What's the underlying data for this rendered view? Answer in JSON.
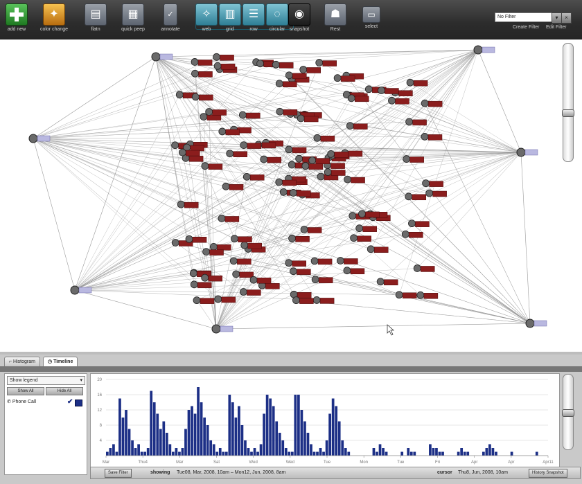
{
  "toolbar": {
    "buttons": [
      {
        "label": "add new",
        "icon": "plus-icon"
      },
      {
        "label": "color change",
        "icon": "color-change-icon"
      },
      {
        "label": "flatn",
        "icon": "flatten-icon"
      },
      {
        "label": "quick peep",
        "icon": "quick-peep-icon"
      },
      {
        "label": "annotate",
        "icon": "annotate-icon"
      },
      {
        "label": "web",
        "icon": "web-layout-icon"
      },
      {
        "label": "grid",
        "icon": "grid-layout-icon"
      },
      {
        "label": "row",
        "icon": "row-layout-icon"
      },
      {
        "label": "circular",
        "icon": "circular-layout-icon"
      },
      {
        "label": "snapshot",
        "icon": "camera-icon"
      },
      {
        "label": "Rest",
        "icon": "rest-icon"
      },
      {
        "label": "select",
        "icon": "select-icon"
      }
    ],
    "filter_value": "No Filter",
    "create_filter": "Create Filter",
    "edit_filter": "Edit Filter"
  },
  "graph": {
    "hub_labels": [
      "—",
      "—",
      "—",
      "—",
      "—",
      "—",
      "—"
    ]
  },
  "bottom": {
    "tab_inactive": "Histogram",
    "tab_active": "Timeline",
    "legend_select": "Show legend",
    "show_all": "Show All",
    "hide_all": "Hide All",
    "legend_item": "Phone Call",
    "y_ticks": [
      "20",
      "16",
      "12",
      "8",
      "4"
    ],
    "x_ticks": [
      "Mar",
      "Thu4",
      "Mar",
      "Sat",
      "Wed",
      "Wed",
      "Tue",
      "Mon",
      "Tue",
      "Fri",
      "Apr",
      "Apr",
      "Apr11"
    ],
    "series_color": "#1c2f86",
    "histogram_values": [
      1,
      2,
      3,
      1,
      15,
      10,
      12,
      7,
      4,
      2,
      3,
      1,
      1,
      2,
      17,
      14,
      11,
      7,
      9,
      6,
      3,
      1,
      2,
      1,
      2,
      7,
      12,
      13,
      11,
      18,
      14,
      10,
      8,
      4,
      3,
      1,
      2,
      1,
      1,
      16,
      14,
      10,
      13,
      8,
      4,
      2,
      1,
      2,
      1,
      3,
      11,
      16,
      15,
      13,
      9,
      6,
      4,
      2,
      1,
      1,
      16,
      16,
      12,
      9,
      6,
      3,
      1,
      1,
      2,
      1,
      4,
      11,
      15,
      13,
      9,
      4,
      2,
      1,
      0,
      0,
      0,
      0,
      0,
      0,
      0,
      2,
      1,
      3,
      2,
      1,
      0,
      0,
      0,
      0,
      1,
      0,
      2,
      1,
      1,
      0,
      0,
      0,
      0,
      3,
      2,
      2,
      1,
      1,
      0,
      0,
      0,
      0,
      1,
      2,
      1,
      1,
      0,
      0,
      0,
      0,
      1,
      2,
      3,
      2,
      1,
      0,
      0,
      0,
      0,
      1,
      0,
      0,
      0,
      0,
      0,
      0,
      0,
      1,
      0,
      0,
      0
    ]
  },
  "status": {
    "save_filter": "Save Filter",
    "showing_label": "showing",
    "showing_value": "Tue08, Mar, 2008, 10am – Mon12, Jun, 2008, 8am",
    "cursor_label": "cursor",
    "cursor_value": "Thu8, Jun, 2008, 10am",
    "history_button": "History Snapshot"
  }
}
